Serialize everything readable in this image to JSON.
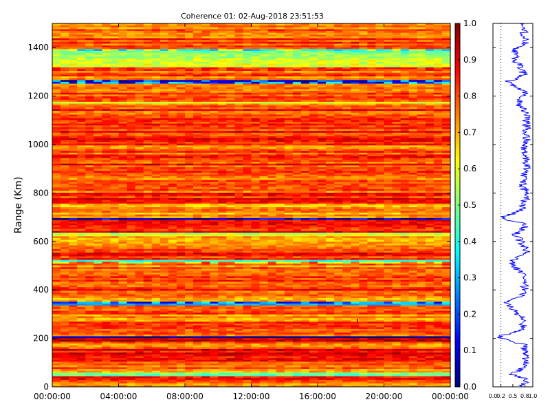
{
  "chart_data": [
    {
      "type": "heatmap",
      "title": "Coherence 01: 02-Aug-2018 23:51:53",
      "xlabel": "",
      "ylabel": "Range (Km)",
      "x_tick_labels": [
        "00:00:00",
        "04:00:00",
        "08:00:00",
        "12:00:00",
        "16:00:00",
        "20:00:00",
        "00:00:00"
      ],
      "x_range_hours": [
        0,
        24
      ],
      "y_ticks": [
        0,
        200,
        400,
        600,
        800,
        1000,
        1200,
        1400
      ],
      "ylim": [
        0,
        1500
      ],
      "colorbar": {
        "colormap": "jet",
        "range": [
          0.0,
          1.0
        ],
        "tick_labels": [
          "0.0",
          "0.1",
          "0.2",
          "0.3",
          "0.4",
          "0.5",
          "0.6",
          "0.7",
          "0.8",
          "0.9",
          "1.0"
        ]
      },
      "range_gate_step_km": 7.5,
      "band_profile": [
        {
          "range": [
            0,
            20
          ],
          "coherence": 0.72
        },
        {
          "range": [
            20,
            48
          ],
          "coherence": 0.86
        },
        {
          "range": [
            48,
            58
          ],
          "coherence": 0.45
        },
        {
          "range": [
            58,
            100
          ],
          "coherence": 0.78
        },
        {
          "range": [
            100,
            160
          ],
          "coherence": 0.85
        },
        {
          "range": [
            160,
            185
          ],
          "coherence": 0.76
        },
        {
          "range": [
            185,
            200
          ],
          "coherence": 0.88
        },
        {
          "range": [
            200,
            212
          ],
          "coherence": 0.12
        },
        {
          "range": [
            212,
            270
          ],
          "coherence": 0.79
        },
        {
          "range": [
            270,
            300
          ],
          "coherence": 0.7
        },
        {
          "range": [
            300,
            340
          ],
          "coherence": 0.8
        },
        {
          "range": [
            340,
            352
          ],
          "coherence": 0.32
        },
        {
          "range": [
            352,
            400
          ],
          "coherence": 0.77
        },
        {
          "range": [
            400,
            470
          ],
          "coherence": 0.82
        },
        {
          "range": [
            470,
            515
          ],
          "coherence": 0.74
        },
        {
          "range": [
            515,
            525
          ],
          "coherence": 0.45
        },
        {
          "range": [
            525,
            580
          ],
          "coherence": 0.84
        },
        {
          "range": [
            580,
            620
          ],
          "coherence": 0.7
        },
        {
          "range": [
            620,
            640
          ],
          "coherence": 0.58
        },
        {
          "range": [
            640,
            690
          ],
          "coherence": 0.84
        },
        {
          "range": [
            690,
            700
          ],
          "coherence": 0.2
        },
        {
          "range": [
            700,
            760
          ],
          "coherence": 0.72
        },
        {
          "range": [
            760,
            800
          ],
          "coherence": 0.85
        },
        {
          "range": [
            800,
            860
          ],
          "coherence": 0.75
        },
        {
          "range": [
            860,
            960
          ],
          "coherence": 0.83
        },
        {
          "range": [
            960,
            1000
          ],
          "coherence": 0.78
        },
        {
          "range": [
            1000,
            1100
          ],
          "coherence": 0.85
        },
        {
          "range": [
            1100,
            1160
          ],
          "coherence": 0.82
        },
        {
          "range": [
            1160,
            1180
          ],
          "coherence": 0.65
        },
        {
          "range": [
            1180,
            1250
          ],
          "coherence": 0.8
        },
        {
          "range": [
            1250,
            1265
          ],
          "coherence": 0.35
        },
        {
          "range": [
            1265,
            1320
          ],
          "coherence": 0.78
        },
        {
          "range": [
            1320,
            1370
          ],
          "coherence": 0.58
        },
        {
          "range": [
            1370,
            1395
          ],
          "coherence": 0.52
        },
        {
          "range": [
            1395,
            1440
          ],
          "coherence": 0.82
        },
        {
          "range": [
            1440,
            1500
          ],
          "coherence": 0.76
        }
      ],
      "notable_low_coherence_rows_km": [
        205,
        350,
        515,
        695,
        1258,
        1390
      ],
      "isolated_feature": {
        "time_h": 18.4,
        "range_km": 272,
        "coherence": 0.95
      }
    },
    {
      "type": "line",
      "title": "",
      "xlabel": "",
      "ylabel": "",
      "x_tick_labels": [
        "0.0",
        "0.2",
        "0.5",
        "0.8",
        "1.0"
      ],
      "xlim": [
        0,
        1
      ],
      "ylim": [
        0,
        1500
      ],
      "reference_line_x": 0.2,
      "series_color": "#0000ff",
      "profile_mean_vs_range": [
        {
          "range": 0,
          "value": 0.72
        },
        {
          "range": 30,
          "value": 0.85
        },
        {
          "range": 52,
          "value": 0.45
        },
        {
          "range": 80,
          "value": 0.78
        },
        {
          "range": 130,
          "value": 0.85
        },
        {
          "range": 175,
          "value": 0.76
        },
        {
          "range": 205,
          "value": 0.12
        },
        {
          "range": 240,
          "value": 0.79
        },
        {
          "range": 290,
          "value": 0.7
        },
        {
          "range": 350,
          "value": 0.32
        },
        {
          "range": 380,
          "value": 0.77
        },
        {
          "range": 440,
          "value": 0.82
        },
        {
          "range": 520,
          "value": 0.45
        },
        {
          "range": 560,
          "value": 0.84
        },
        {
          "range": 630,
          "value": 0.58
        },
        {
          "range": 670,
          "value": 0.84
        },
        {
          "range": 695,
          "value": 0.2
        },
        {
          "range": 730,
          "value": 0.72
        },
        {
          "range": 790,
          "value": 0.85
        },
        {
          "range": 830,
          "value": 0.75
        },
        {
          "range": 900,
          "value": 0.83
        },
        {
          "range": 980,
          "value": 0.78
        },
        {
          "range": 1050,
          "value": 0.85
        },
        {
          "range": 1130,
          "value": 0.82
        },
        {
          "range": 1170,
          "value": 0.65
        },
        {
          "range": 1220,
          "value": 0.8
        },
        {
          "range": 1258,
          "value": 0.35
        },
        {
          "range": 1290,
          "value": 0.78
        },
        {
          "range": 1345,
          "value": 0.58
        },
        {
          "range": 1390,
          "value": 0.52
        },
        {
          "range": 1420,
          "value": 0.82
        },
        {
          "range": 1480,
          "value": 0.76
        }
      ]
    }
  ]
}
